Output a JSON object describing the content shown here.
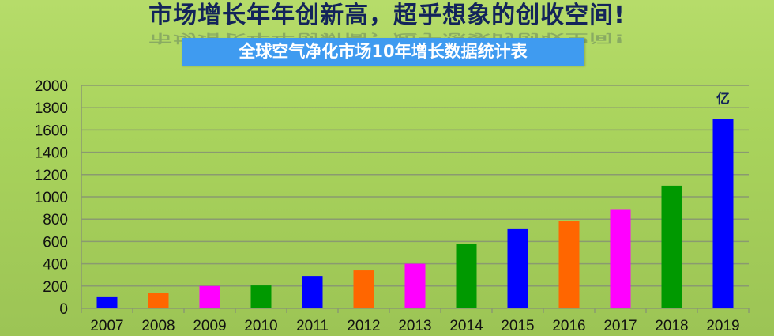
{
  "header": {
    "headline": "市场增长年年创新高，超乎想象的创收空间!",
    "subtitle": "全球空气净化市场10年增长数据统计表"
  },
  "chart_data": {
    "type": "bar",
    "title": "全球空气净化市场10年增长数据统计表",
    "unit_label": "亿",
    "categories": [
      "2007",
      "2008",
      "2009",
      "2010",
      "2011",
      "2012",
      "2013",
      "2014",
      "2015",
      "2016",
      "2017",
      "2018",
      "2019"
    ],
    "values": [
      100,
      140,
      200,
      205,
      290,
      340,
      400,
      580,
      710,
      780,
      890,
      1100,
      1700
    ],
    "bar_colors": [
      "#0000ff",
      "#ff6600",
      "#ff00ff",
      "#009900",
      "#0000ff",
      "#ff6600",
      "#ff00ff",
      "#009900",
      "#0000ff",
      "#ff6600",
      "#ff00ff",
      "#009900",
      "#0000ff"
    ],
    "ylim": [
      0,
      2000
    ],
    "yticks": [
      0,
      200,
      400,
      600,
      800,
      1000,
      1200,
      1400,
      1600,
      1800,
      2000
    ],
    "grid": true,
    "legend": "none"
  }
}
